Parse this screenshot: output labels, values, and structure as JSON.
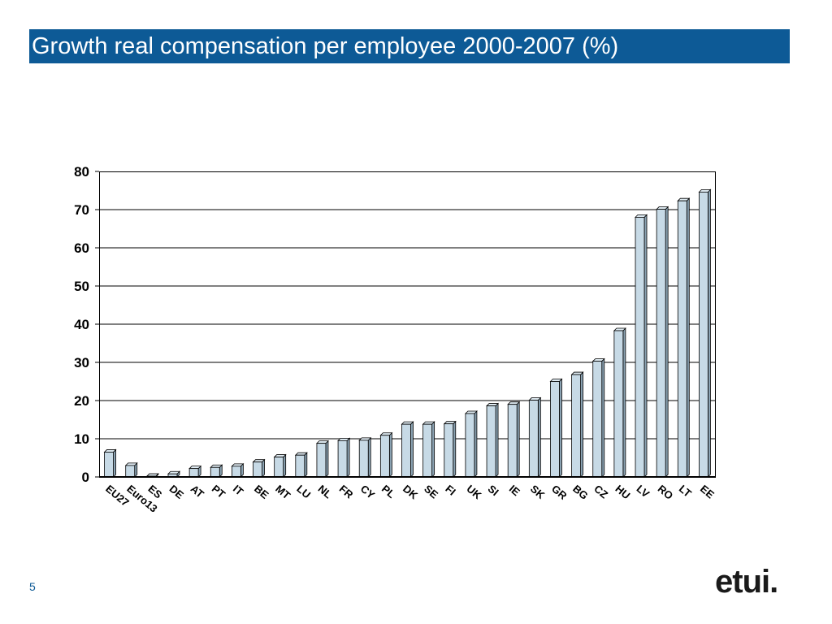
{
  "slide": {
    "title": "Growth real compensation per employee 2000-2007 (%)",
    "page_number": "5",
    "logo_text": "etui."
  },
  "colors": {
    "title_bg": "#0d5a96",
    "bar_front": "#c7dae6",
    "bar_side": "#8ba3b3",
    "bar_top": "#dde9f0",
    "gridline": "#000000"
  },
  "chart_data": {
    "type": "bar",
    "title": "",
    "xlabel": "",
    "ylabel": "",
    "ylim": [
      0,
      80
    ],
    "yticks": [
      0,
      10,
      20,
      30,
      40,
      50,
      60,
      70,
      80
    ],
    "grid": true,
    "categories": [
      "EU27",
      "Euro13",
      "ES",
      "DE",
      "AT",
      "PT",
      "IT",
      "BE",
      "MT",
      "LU",
      "NL",
      "FR",
      "CY",
      "PL",
      "DK",
      "SE",
      "FI",
      "UK",
      "SI",
      "IE",
      "SK",
      "GR",
      "BG",
      "CZ",
      "HU",
      "LV",
      "RO",
      "LT",
      "EE"
    ],
    "values": [
      6.5,
      3.0,
      0.2,
      0.8,
      2.2,
      2.5,
      2.8,
      3.9,
      5.2,
      5.7,
      8.8,
      9.5,
      9.6,
      10.9,
      13.8,
      13.8,
      13.9,
      16.6,
      18.6,
      19.0,
      20.1,
      25.0,
      26.8,
      30.3,
      38.3,
      68.0,
      70.1,
      72.3,
      74.6
    ]
  }
}
